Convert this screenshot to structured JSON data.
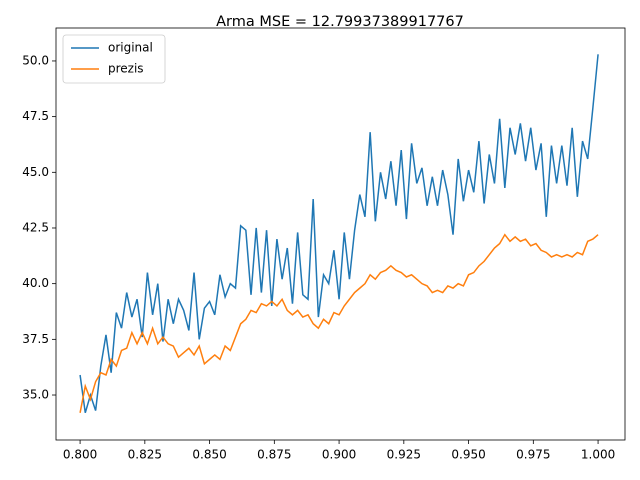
{
  "chart_data": {
    "type": "line",
    "title": "Arma MSE = 12.79937389917767",
    "x": [
      0.8,
      0.802,
      0.804,
      0.806,
      0.808,
      0.81,
      0.812,
      0.814,
      0.816,
      0.818,
      0.82,
      0.822,
      0.824,
      0.826,
      0.828,
      0.83,
      0.832,
      0.834,
      0.836,
      0.838,
      0.84,
      0.842,
      0.844,
      0.846,
      0.848,
      0.85,
      0.852,
      0.854,
      0.856,
      0.858,
      0.86,
      0.862,
      0.864,
      0.866,
      0.868,
      0.87,
      0.872,
      0.874,
      0.876,
      0.878,
      0.88,
      0.882,
      0.884,
      0.886,
      0.888,
      0.89,
      0.892,
      0.894,
      0.896,
      0.898,
      0.9,
      0.902,
      0.904,
      0.906,
      0.908,
      0.91,
      0.912,
      0.914,
      0.916,
      0.918,
      0.92,
      0.922,
      0.924,
      0.926,
      0.928,
      0.93,
      0.932,
      0.934,
      0.936,
      0.938,
      0.94,
      0.942,
      0.944,
      0.946,
      0.948,
      0.95,
      0.952,
      0.954,
      0.956,
      0.958,
      0.96,
      0.962,
      0.964,
      0.966,
      0.968,
      0.97,
      0.972,
      0.974,
      0.976,
      0.978,
      0.98,
      0.982,
      0.984,
      0.986,
      0.988,
      0.99,
      0.992,
      0.994,
      0.996,
      0.998,
      1.0
    ],
    "series": [
      {
        "name": "original",
        "color": "#1f77b4",
        "values": [
          35.9,
          34.2,
          35.0,
          34.3,
          36.3,
          37.7,
          36.0,
          38.7,
          38.0,
          39.6,
          38.5,
          39.3,
          37.6,
          40.5,
          38.6,
          40.0,
          37.4,
          39.3,
          38.2,
          39.3,
          38.8,
          37.9,
          40.5,
          37.5,
          38.9,
          39.2,
          38.6,
          40.4,
          39.4,
          40.0,
          39.8,
          42.6,
          42.4,
          39.5,
          42.5,
          39.6,
          42.4,
          39.0,
          42.0,
          40.2,
          41.6,
          39.1,
          42.3,
          39.5,
          39.3,
          43.8,
          38.5,
          40.4,
          40.0,
          41.5,
          39.3,
          42.3,
          40.2,
          42.4,
          44.0,
          43.0,
          46.8,
          42.8,
          45.0,
          43.8,
          45.5,
          43.5,
          46.0,
          42.9,
          46.3,
          44.5,
          45.2,
          43.5,
          44.8,
          43.5,
          45.1,
          44.0,
          42.2,
          45.6,
          43.7,
          45.1,
          44.1,
          46.4,
          43.6,
          45.8,
          44.5,
          47.4,
          44.3,
          47.0,
          45.8,
          47.2,
          45.5,
          47.0,
          45.1,
          46.3,
          43.0,
          46.2,
          44.5,
          46.2,
          44.4,
          47.0,
          43.9,
          46.4,
          45.6,
          47.9,
          50.3
        ]
      },
      {
        "name": "prezis",
        "color": "#ff7f0e",
        "values": [
          34.2,
          35.4,
          34.8,
          35.6,
          36.0,
          35.9,
          36.6,
          36.3,
          37.0,
          37.1,
          37.8,
          37.3,
          37.8,
          37.3,
          38.0,
          37.3,
          37.6,
          37.3,
          37.2,
          36.7,
          36.9,
          37.1,
          36.8,
          37.2,
          36.4,
          36.6,
          36.8,
          36.6,
          37.2,
          37.0,
          37.6,
          38.2,
          38.4,
          38.8,
          38.7,
          39.1,
          39.0,
          39.2,
          39.0,
          39.3,
          38.8,
          38.6,
          38.8,
          38.5,
          38.6,
          38.2,
          38.0,
          38.4,
          38.2,
          38.7,
          38.6,
          39.0,
          39.3,
          39.6,
          39.8,
          40.0,
          40.4,
          40.2,
          40.5,
          40.6,
          40.8,
          40.6,
          40.5,
          40.3,
          40.4,
          40.2,
          40.0,
          39.9,
          39.6,
          39.7,
          39.6,
          39.9,
          39.8,
          40.0,
          39.9,
          40.4,
          40.5,
          40.8,
          41.0,
          41.3,
          41.6,
          41.8,
          42.2,
          41.9,
          42.1,
          41.9,
          42.0,
          41.7,
          41.8,
          41.5,
          41.4,
          41.2,
          41.3,
          41.2,
          41.3,
          41.2,
          41.4,
          41.3,
          41.9,
          42.0,
          42.2
        ]
      }
    ],
    "xlim": [
      0.7907,
      1.0104
    ],
    "ylim": [
      32.98,
      51.48
    ],
    "xticks": [
      {
        "value": 0.8,
        "label": "0.800"
      },
      {
        "value": 0.825,
        "label": "0.825"
      },
      {
        "value": 0.85,
        "label": "0.850"
      },
      {
        "value": 0.875,
        "label": "0.875"
      },
      {
        "value": 0.9,
        "label": "0.900"
      },
      {
        "value": 0.925,
        "label": "0.925"
      },
      {
        "value": 0.95,
        "label": "0.950"
      },
      {
        "value": 0.975,
        "label": "0.975"
      },
      {
        "value": 1.0,
        "label": "1.000"
      }
    ],
    "yticks": [
      {
        "value": 35,
        "label": "35.0"
      },
      37.5,
      {
        "value": 40,
        "label": "40.0"
      },
      42.5,
      {
        "value": 45,
        "label": "45.0"
      },
      47.5,
      {
        "value": 50,
        "label": "50.0"
      }
    ],
    "legend": "upper left"
  }
}
